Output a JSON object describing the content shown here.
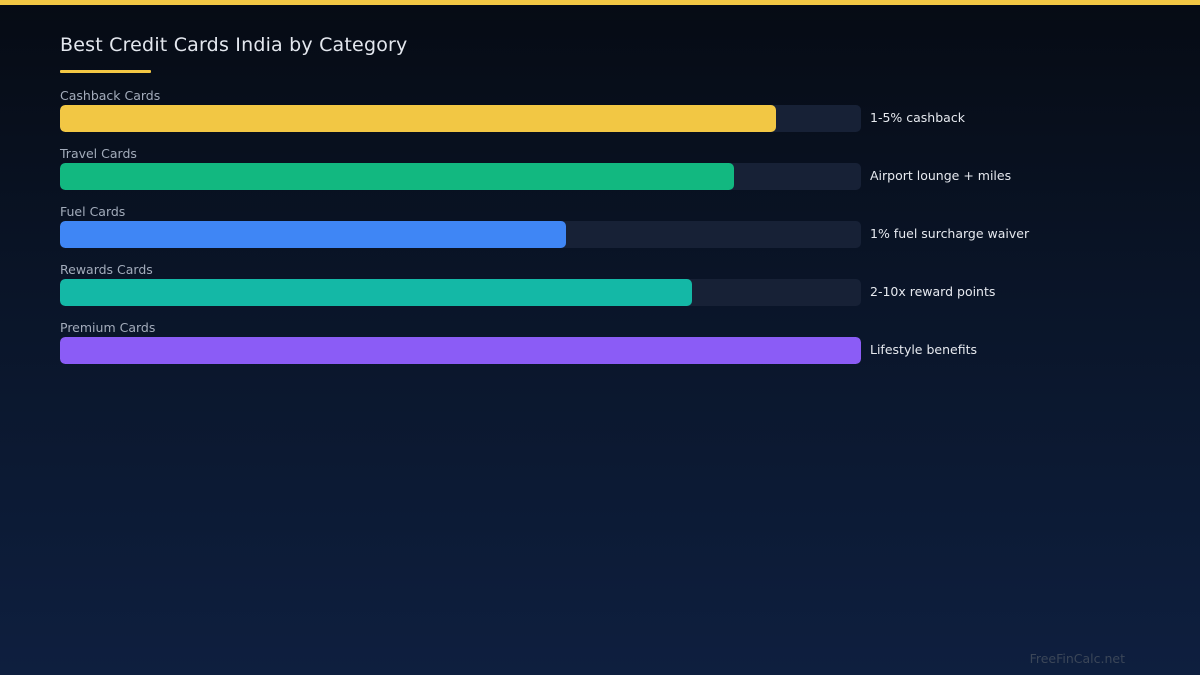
{
  "accent_color": "#f2c744",
  "watermark": "FreeFinCalc.net",
  "chart_data": {
    "type": "bar",
    "orientation": "horizontal",
    "title": "Best Credit Cards India by Category",
    "xlabel": "",
    "ylabel": "",
    "xlim": [
      0,
      100
    ],
    "grid": false,
    "categories": [
      "Cashback Cards",
      "Travel Cards",
      "Fuel Cards",
      "Rewards Cards",
      "Premium Cards"
    ],
    "values": [
      89.4,
      84.1,
      63.2,
      78.9,
      100
    ],
    "annotations": [
      "1-5% cashback",
      "Airport lounge + miles",
      "1% fuel surcharge waiver",
      "2-10x reward points",
      "Lifestyle benefits"
    ],
    "colors": [
      "#f2c744",
      "#12b880",
      "#3f86f5",
      "#14b8a6",
      "#8b5cf6"
    ]
  }
}
